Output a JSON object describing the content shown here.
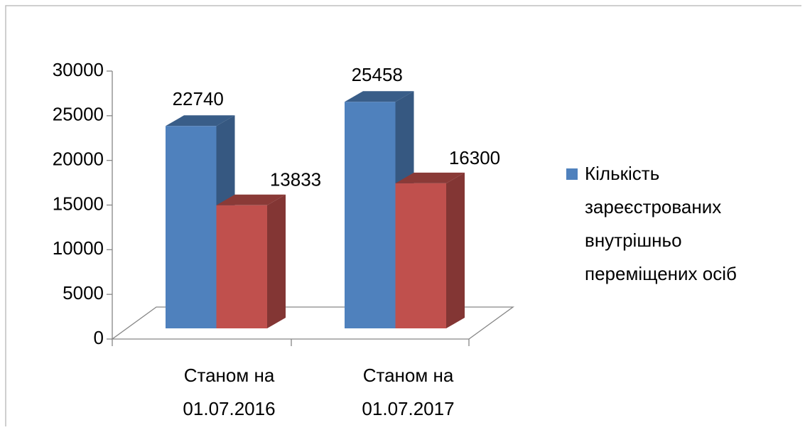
{
  "chart_data": {
    "type": "bar3d",
    "categories": [
      "Станом на 01.07.2016",
      "Станом на 01.07.2017"
    ],
    "series": [
      {
        "name": "Кількість зареєстрованих внутрішньо переміщених осіб",
        "color": "#4f81bd",
        "values": [
          22740,
          25458
        ]
      },
      {
        "color": "#c0504d",
        "values": [
          13833,
          16300
        ]
      }
    ],
    "ylim": [
      0,
      30000
    ],
    "yticks": [
      0,
      5000,
      10000,
      15000,
      20000,
      25000,
      30000
    ],
    "legend": "right"
  }
}
